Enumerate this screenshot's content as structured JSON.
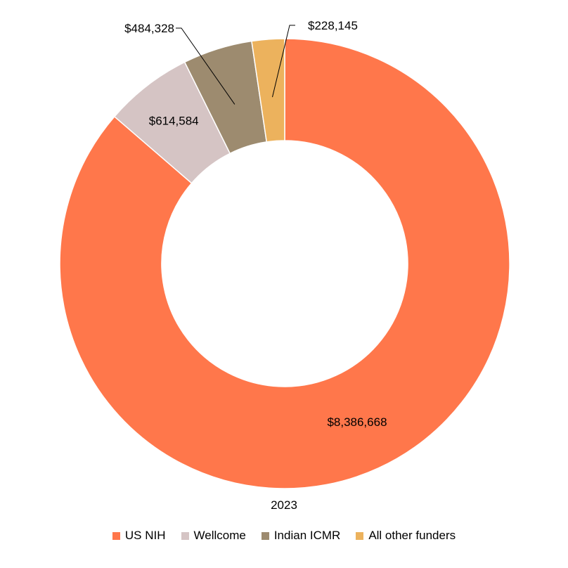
{
  "chart_data": {
    "type": "pie",
    "donut": true,
    "category_label": "2023",
    "slices": [
      {
        "name": "US NIH",
        "value": 8386668,
        "label": "$8,386,668",
        "color": "#FF774B"
      },
      {
        "name": "Wellcome",
        "value": 614584,
        "label": "$614,584",
        "color": "#D5C4C4"
      },
      {
        "name": "Indian ICMR",
        "value": 484328,
        "label": "$484,328",
        "color": "#9D8B6F"
      },
      {
        "name": "All other funders",
        "value": 228145,
        "label": "$228,145",
        "color": "#ECB25D"
      }
    ],
    "legend_position": "bottom"
  }
}
